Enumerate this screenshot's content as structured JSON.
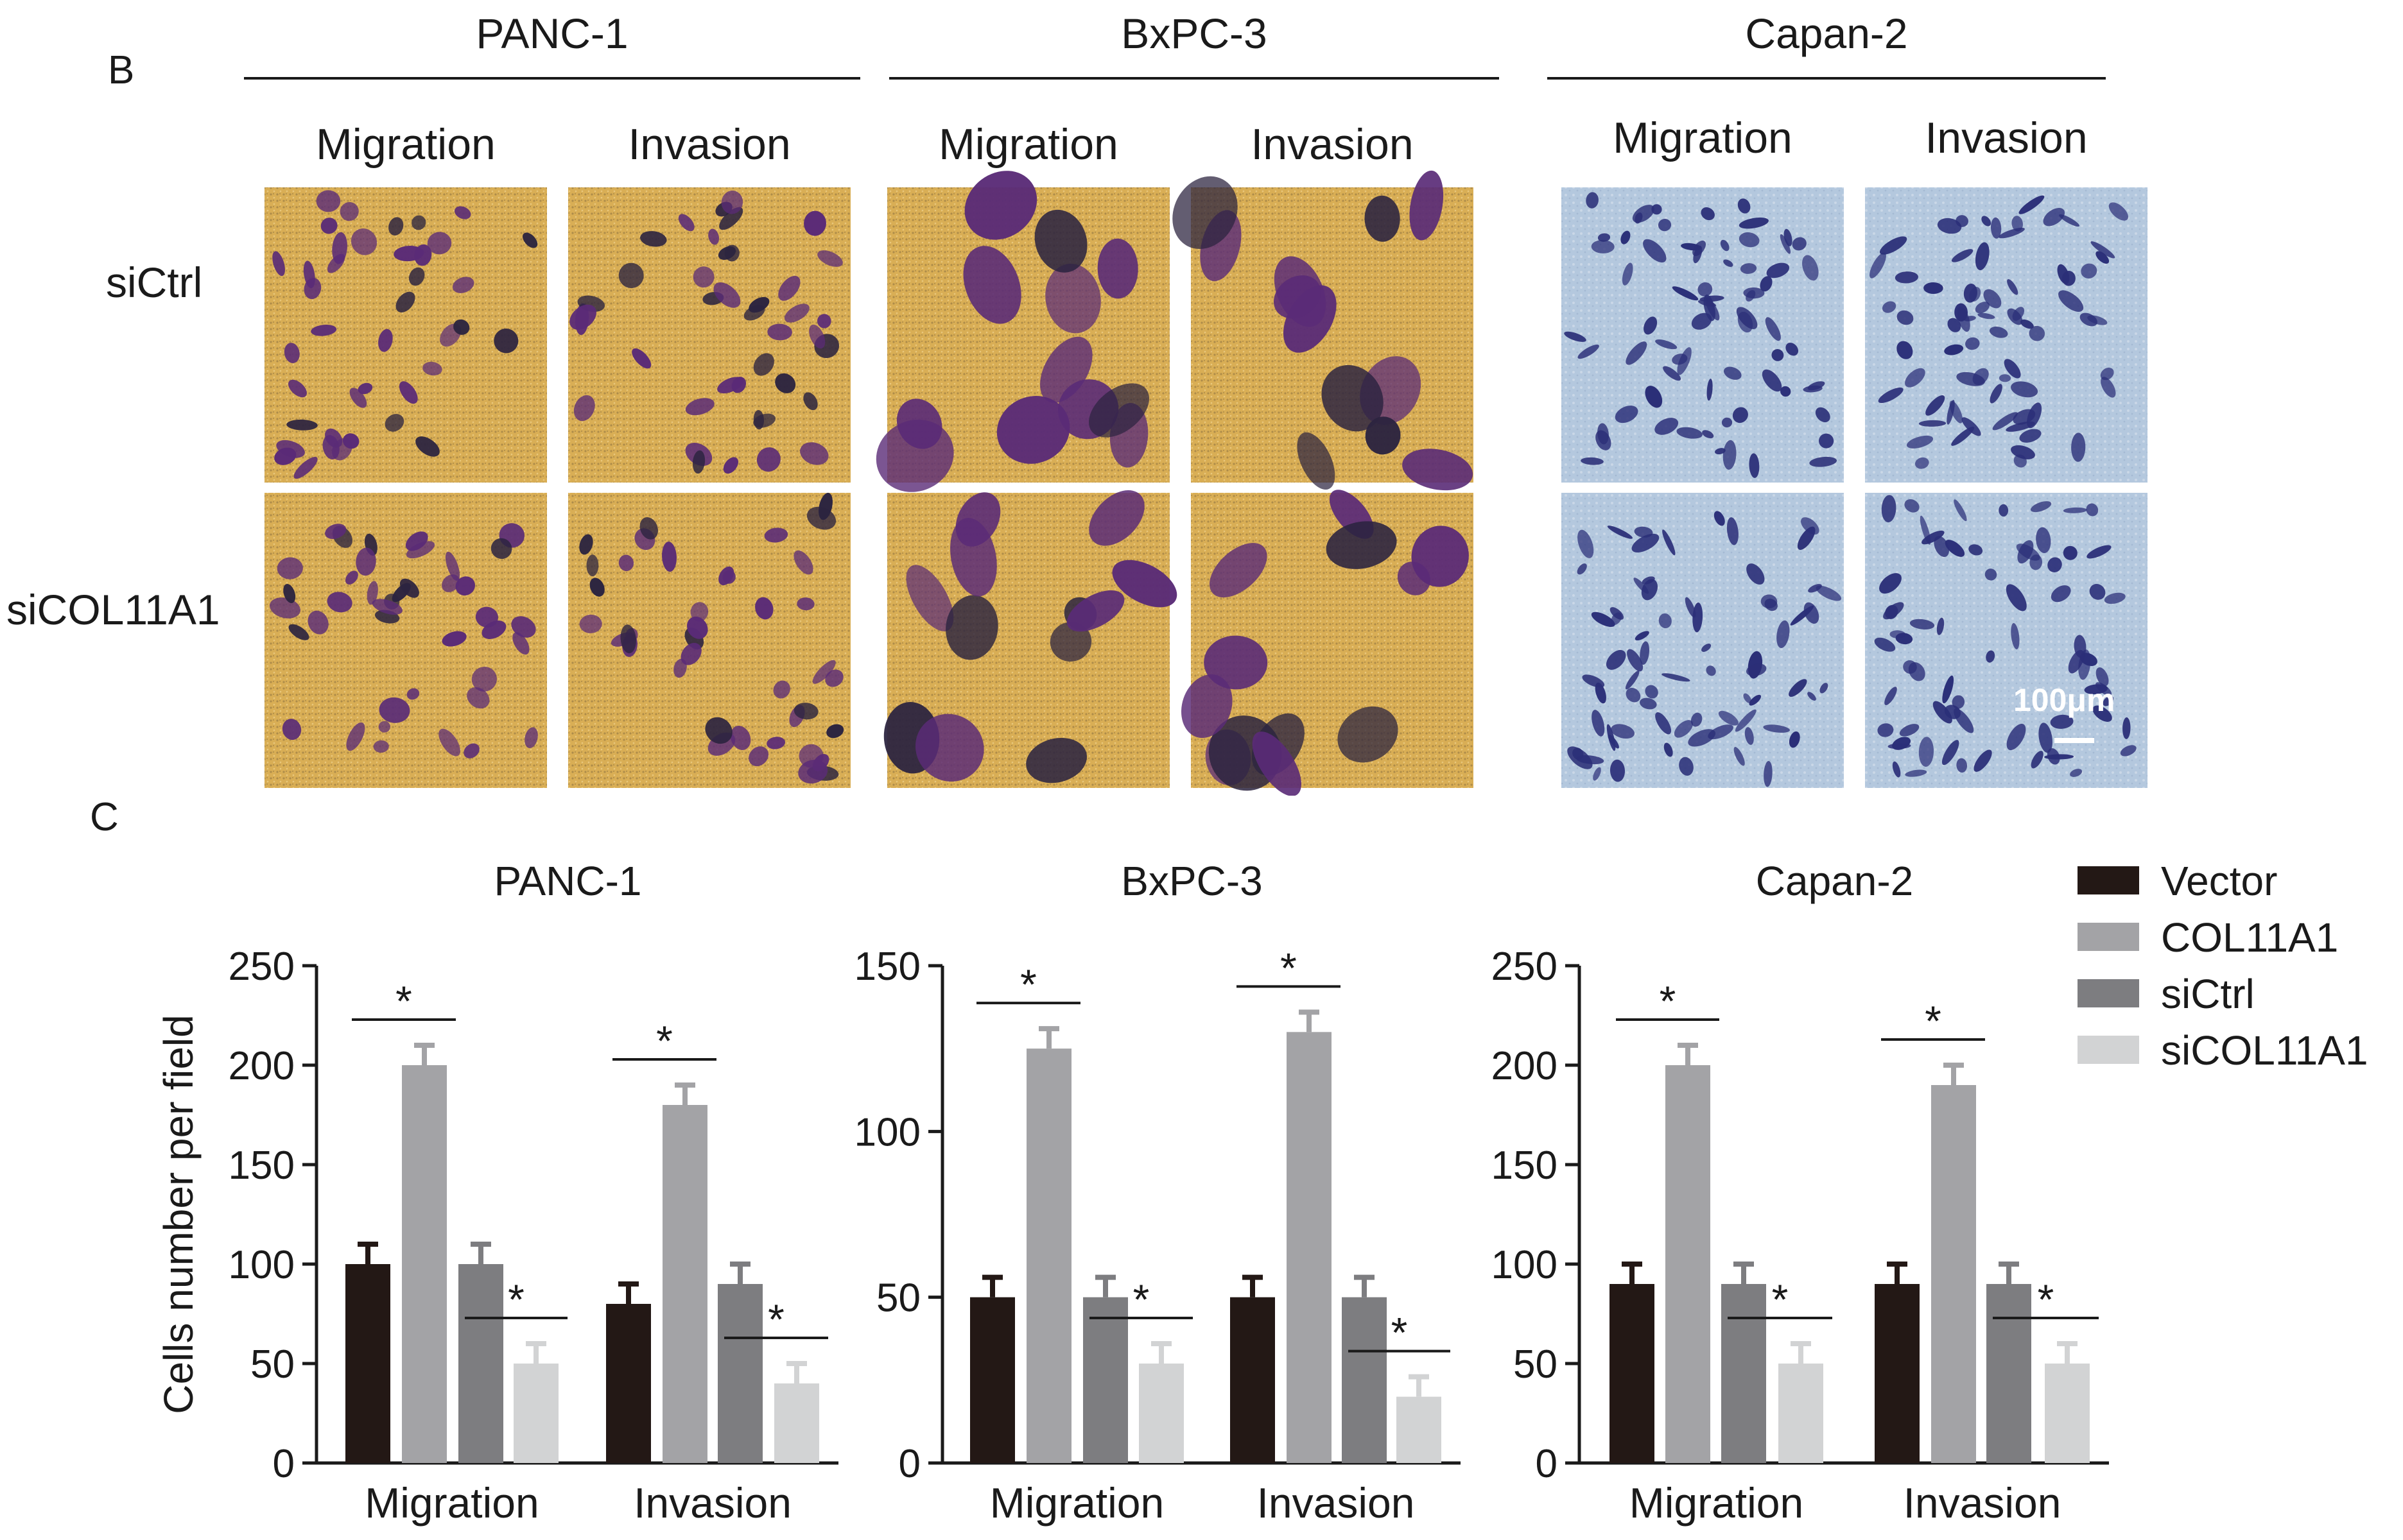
{
  "panel_b": {
    "letter": "B",
    "cell_lines": [
      "PANC-1",
      "BxPC-3",
      "Capan-2"
    ],
    "conditions": [
      "Migration",
      "Invasion"
    ],
    "rows": [
      "siCtrl",
      "siCOL11A1"
    ],
    "scale_bar": "100μm",
    "colors": {
      "stain_bg_yellow": "#d9ae55",
      "cell_purple": "#5a2b77",
      "stain_bg_blue": "#b4c8de",
      "cell_blue": "#2b2f78"
    }
  },
  "panel_c": {
    "letter": "C",
    "legend": [
      {
        "label": "Vector",
        "color": "#231815"
      },
      {
        "label": "COL11A1",
        "color": "#a3a3a6"
      },
      {
        "label": "siCtrl",
        "color": "#7d7d80"
      },
      {
        "label": "siCOL11A1",
        "color": "#d2d3d4"
      }
    ],
    "significance_mark": "*"
  },
  "chart_data": [
    {
      "type": "bar",
      "title": "PANC-1",
      "ylabel": "Cells number per field",
      "categories": [
        "Migration",
        "Invasion"
      ],
      "ylim": [
        0,
        250
      ],
      "yticks": [
        0,
        50,
        100,
        150,
        200,
        250
      ],
      "series": [
        {
          "name": "Vector",
          "values": [
            100,
            80
          ],
          "errors": [
            10,
            10
          ]
        },
        {
          "name": "COL11A1",
          "values": [
            200,
            180
          ],
          "errors": [
            10,
            10
          ]
        },
        {
          "name": "siCtrl",
          "values": [
            100,
            90
          ],
          "errors": [
            10,
            10
          ]
        },
        {
          "name": "siCOL11A1",
          "values": [
            50,
            40
          ],
          "errors": [
            10,
            10
          ]
        }
      ]
    },
    {
      "type": "bar",
      "title": "BxPC-3",
      "ylabel": "",
      "categories": [
        "Migration",
        "Invasion"
      ],
      "ylim": [
        0,
        150
      ],
      "yticks": [
        0,
        50,
        100,
        150
      ],
      "series": [
        {
          "name": "Vector",
          "values": [
            50,
            50
          ],
          "errors": [
            6,
            6
          ]
        },
        {
          "name": "COL11A1",
          "values": [
            125,
            130
          ],
          "errors": [
            6,
            6
          ]
        },
        {
          "name": "siCtrl",
          "values": [
            50,
            50
          ],
          "errors": [
            6,
            6
          ]
        },
        {
          "name": "siCOL11A1",
          "values": [
            30,
            20
          ],
          "errors": [
            6,
            6
          ]
        }
      ]
    },
    {
      "type": "bar",
      "title": "Capan-2",
      "ylabel": "",
      "categories": [
        "Migration",
        "Invasion"
      ],
      "ylim": [
        0,
        250
      ],
      "yticks": [
        0,
        50,
        100,
        150,
        200,
        250
      ],
      "series": [
        {
          "name": "Vector",
          "values": [
            90,
            90
          ],
          "errors": [
            10,
            10
          ]
        },
        {
          "name": "COL11A1",
          "values": [
            200,
            190
          ],
          "errors": [
            10,
            10
          ]
        },
        {
          "name": "siCtrl",
          "values": [
            90,
            90
          ],
          "errors": [
            10,
            10
          ]
        },
        {
          "name": "siCOL11A1",
          "values": [
            50,
            50
          ],
          "errors": [
            10,
            10
          ]
        }
      ]
    }
  ]
}
